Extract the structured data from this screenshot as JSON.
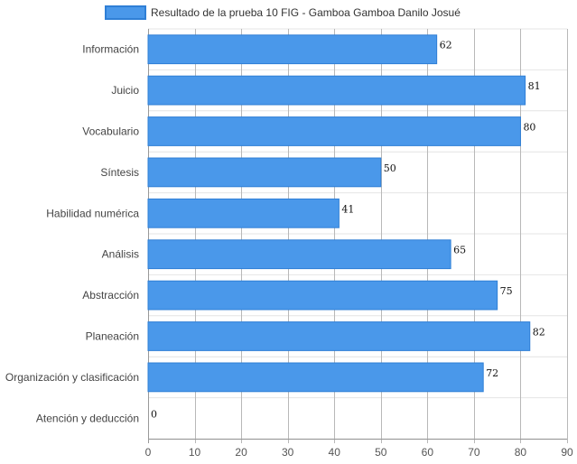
{
  "colors": {
    "bar": "#4a98ea",
    "bar_border": "#2f7fd6",
    "grid_major": "#b8b8b8",
    "grid_minor": "#e4e4e4",
    "axis": "#999999"
  },
  "chart_data": {
    "type": "bar",
    "orientation": "horizontal",
    "title": "",
    "xlabel": "",
    "ylabel": "",
    "legend_position": "top",
    "grid": true,
    "xlim": [
      0,
      90
    ],
    "x_ticks": [
      "0",
      "10",
      "20",
      "30",
      "40",
      "50",
      "60",
      "70",
      "80",
      "90"
    ],
    "categories": [
      "Información",
      "Juicio",
      "Vocabulario",
      "Síntesis",
      "Habilidad numérica",
      "Análisis",
      "Abstracción",
      "Planeación",
      "Organización y clasificación",
      "Atención y deducción"
    ],
    "series": [
      {
        "name": "Resultado de la prueba 10 FIG - Gamboa Gamboa Danilo Josué",
        "values": [
          62,
          81,
          80,
          50,
          41,
          65,
          75,
          82,
          72,
          0
        ]
      }
    ]
  }
}
